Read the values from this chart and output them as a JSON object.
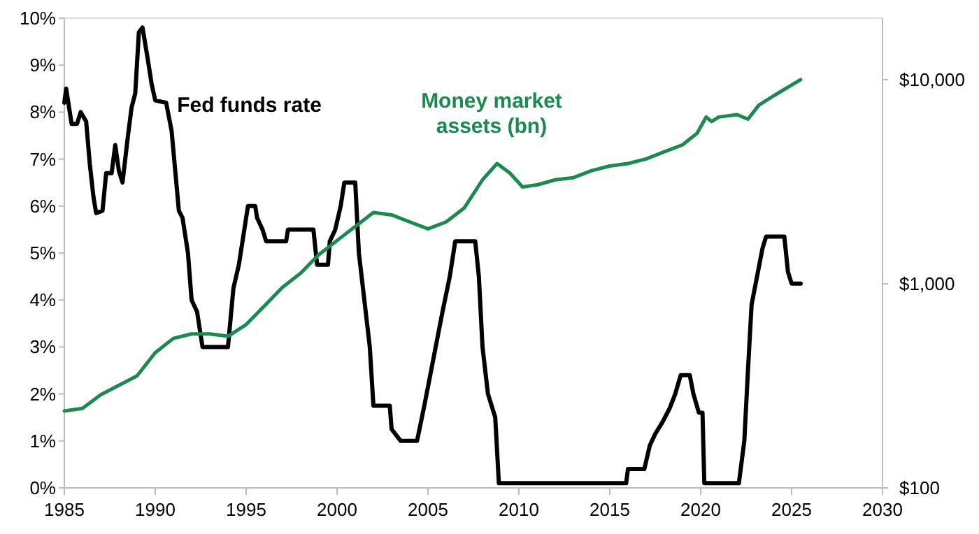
{
  "chart_data": {
    "type": "line",
    "log": "y2",
    "xlim": [
      1985,
      2030
    ],
    "xticks": [
      1985,
      1990,
      1995,
      2000,
      2005,
      2010,
      2015,
      2020,
      2025,
      2030
    ],
    "ylim": [
      0,
      10
    ],
    "yticks": [
      {
        "value": 0,
        "label": "0%"
      },
      {
        "value": 1,
        "label": "1%"
      },
      {
        "value": 2,
        "label": "2%"
      },
      {
        "value": 3,
        "label": "3%"
      },
      {
        "value": 4,
        "label": "4%"
      },
      {
        "value": 5,
        "label": "5%"
      },
      {
        "value": 6,
        "label": "6%"
      },
      {
        "value": 7,
        "label": "7%"
      },
      {
        "value": 8,
        "label": "8%"
      },
      {
        "value": 9,
        "label": "9%"
      },
      {
        "value": 10,
        "label": "10%"
      }
    ],
    "y2lim": [
      100,
      20000
    ],
    "y2ticks": [
      {
        "value": 100,
        "label": "$100"
      },
      {
        "value": 1000,
        "label": "$1,000"
      },
      {
        "value": 10000,
        "label": "$10,000"
      }
    ],
    "grid": false,
    "series": [
      {
        "name": "Fed funds rate",
        "color": "#000000",
        "x": [
          1985.0,
          1985.1,
          1985.4,
          1985.7,
          1985.9,
          1986.2,
          1986.4,
          1986.6,
          1986.75,
          1987.1,
          1987.3,
          1987.6,
          1987.8,
          1988.0,
          1988.2,
          1988.5,
          1988.7,
          1988.9,
          1989.1,
          1989.3,
          1989.6,
          1989.8,
          1990.0,
          1990.6,
          1990.9,
          1991.1,
          1991.3,
          1991.5,
          1991.8,
          1992.0,
          1992.3,
          1992.6,
          1994.0,
          1994.3,
          1994.6,
          1994.9,
          1995.1,
          1995.5,
          1995.6,
          1995.9,
          1996.1,
          1997.2,
          1997.3,
          1998.7,
          1998.9,
          1999.5,
          1999.6,
          1999.9,
          2000.2,
          2000.4,
          2001.0,
          2001.2,
          2001.5,
          2001.8,
          2002.0,
          2002.9,
          2003.0,
          2003.5,
          2004.4,
          2004.8,
          2005.3,
          2005.8,
          2006.2,
          2006.5,
          2007.6,
          2007.8,
          2008.0,
          2008.3,
          2008.7,
          2008.9,
          2015.9,
          2016.0,
          2016.9,
          2017.2,
          2017.5,
          2017.9,
          2018.3,
          2018.6,
          2018.9,
          2019.4,
          2019.6,
          2019.9,
          2020.1,
          2020.2,
          2022.1,
          2022.4,
          2022.6,
          2022.8,
          2023.1,
          2023.4,
          2023.6,
          2024.6,
          2024.8,
          2025.0,
          2025.5
        ],
        "values": [
          8.2,
          8.5,
          7.75,
          7.75,
          8.0,
          7.8,
          6.9,
          6.2,
          5.85,
          5.9,
          6.7,
          6.7,
          7.3,
          6.75,
          6.5,
          7.5,
          8.1,
          8.4,
          9.7,
          9.8,
          9.1,
          8.6,
          8.25,
          8.2,
          7.6,
          6.75,
          5.9,
          5.75,
          5.0,
          4.0,
          3.75,
          3.0,
          3.0,
          4.25,
          4.75,
          5.5,
          6.0,
          6.0,
          5.75,
          5.5,
          5.25,
          5.25,
          5.5,
          5.5,
          4.75,
          4.75,
          5.25,
          5.5,
          6.0,
          6.5,
          6.5,
          5.0,
          4.0,
          3.0,
          1.75,
          1.75,
          1.25,
          1.0,
          1.0,
          1.75,
          2.75,
          3.75,
          4.5,
          5.25,
          5.25,
          4.5,
          3.0,
          2.0,
          1.5,
          0.1,
          0.1,
          0.4,
          0.4,
          0.9,
          1.15,
          1.4,
          1.7,
          2.0,
          2.4,
          2.4,
          2.0,
          1.6,
          1.6,
          0.1,
          0.1,
          1.0,
          2.5,
          3.9,
          4.5,
          5.1,
          5.35,
          5.35,
          4.6,
          4.35,
          4.35
        ]
      },
      {
        "name": "Money market assets (bn)",
        "color": "#1a8a50",
        "axis": "y2",
        "x": [
          1985,
          1986,
          1987,
          1988,
          1989,
          1990,
          1991,
          1992,
          1993,
          1994,
          1995,
          1996,
          1997,
          1998,
          1999,
          2000,
          2001,
          2002,
          2003,
          2004,
          2005,
          2006,
          2007,
          2008,
          2008.8,
          2009.5,
          2010.2,
          2011,
          2012,
          2013,
          2014,
          2015,
          2016,
          2017,
          2018,
          2019,
          2019.8,
          2020.3,
          2020.6,
          2021,
          2022,
          2022.6,
          2023.2,
          2024,
          2025.5
        ],
        "values": [
          238,
          245,
          286,
          318,
          354,
          460,
          540,
          568,
          568,
          553,
          631,
          779,
          961,
          1127,
          1390,
          1628,
          1907,
          2233,
          2175,
          2009,
          1857,
          2009,
          2353,
          3230,
          3880,
          3490,
          2980,
          3050,
          3230,
          3310,
          3580,
          3775,
          3880,
          4090,
          4430,
          4790,
          5460,
          6560,
          6230,
          6560,
          6740,
          6400,
          7500,
          8320,
          10000
        ]
      }
    ]
  }
}
